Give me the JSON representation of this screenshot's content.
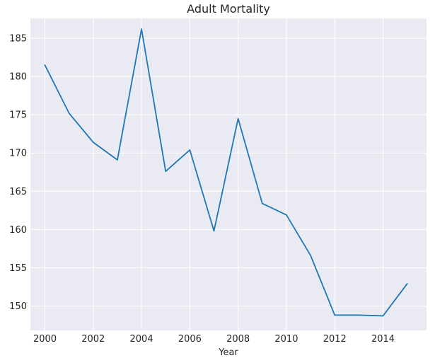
{
  "chart_data": {
    "type": "line",
    "title": "Adult Mortality",
    "xlabel": "Year",
    "ylabel": "",
    "x": [
      2000,
      2001,
      2002,
      2003,
      2004,
      2005,
      2006,
      2007,
      2008,
      2009,
      2010,
      2011,
      2012,
      2013,
      2014,
      2015
    ],
    "series": [
      {
        "values": [
          181.5,
          175.2,
          171.4,
          169.1,
          186.2,
          167.6,
          170.4,
          159.8,
          174.5,
          163.4,
          161.9,
          156.6,
          148.8,
          148.8,
          148.7,
          152.9
        ],
        "color": "#1f77b4"
      }
    ],
    "x_ticks": [
      "2000",
      "2002",
      "2004",
      "2006",
      "2008",
      "2010",
      "2012",
      "2014"
    ],
    "y_ticks": [
      "150",
      "155",
      "160",
      "165",
      "170",
      "175",
      "180",
      "185"
    ],
    "xlim": [
      1999.4,
      2015.8
    ],
    "ylim": [
      146.8,
      187.6
    ],
    "grid": true,
    "style": {
      "background": "#eaeaf2",
      "grid_color": "#ffffff",
      "line_color": "#1f77b4"
    }
  }
}
